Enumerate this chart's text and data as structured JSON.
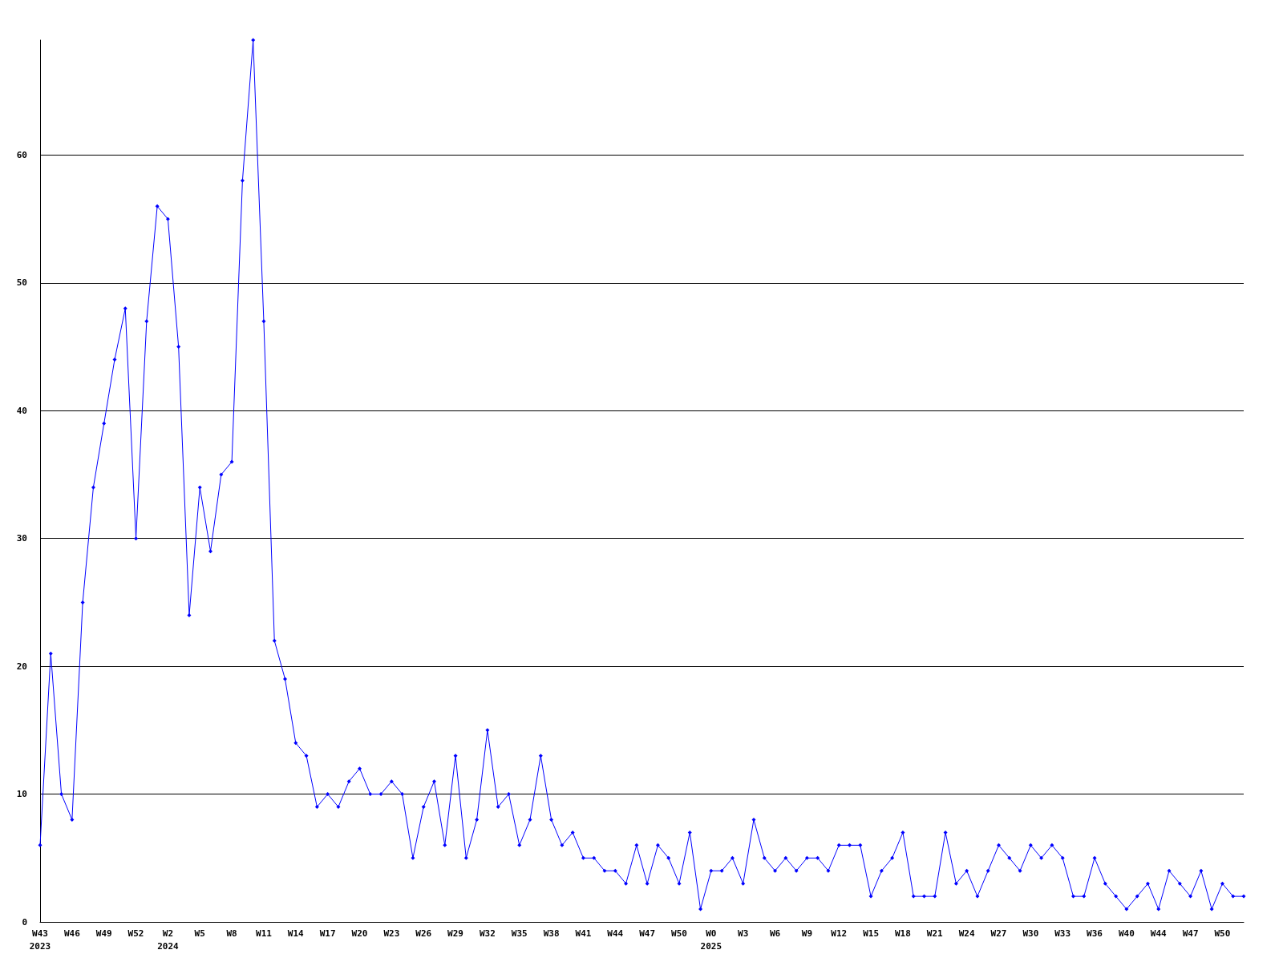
{
  "chart_data": {
    "type": "line",
    "categories": [
      "W43\n2023",
      null,
      null,
      "W46",
      null,
      null,
      "W49",
      null,
      null,
      "W52",
      null,
      null,
      "W2\n2024",
      null,
      null,
      "W5",
      null,
      null,
      "W8",
      null,
      null,
      "W11",
      null,
      null,
      "W14",
      null,
      null,
      "W17",
      null,
      null,
      "W20",
      null,
      null,
      "W23",
      null,
      null,
      "W26",
      null,
      null,
      "W29",
      null,
      null,
      "W32",
      null,
      null,
      "W35",
      null,
      null,
      "W38",
      null,
      null,
      "W41",
      null,
      null,
      "W44",
      null,
      null,
      "W47",
      null,
      null,
      "W50",
      null,
      null,
      "W0\n2025",
      null,
      null,
      "W3",
      null,
      null,
      "W6",
      null,
      null,
      "W9",
      null,
      null,
      "W12",
      null,
      null,
      "W15",
      null,
      null,
      "W18",
      null,
      null,
      "W21",
      null,
      null,
      "W24",
      null,
      null,
      "W27",
      null,
      null,
      "W30",
      null,
      null,
      "W33",
      null,
      null,
      "W36",
      null,
      null,
      "W40",
      null,
      null,
      "W44",
      null,
      null,
      "W47",
      null,
      null,
      "W50",
      null,
      null
    ],
    "series": [
      {
        "color": "#0000ff",
        "values": [
          6,
          21,
          10,
          8,
          25,
          34,
          39,
          44,
          48,
          30,
          47,
          56,
          55,
          45,
          24,
          34,
          29,
          35,
          36,
          58,
          69,
          47,
          22,
          19,
          14,
          13,
          9,
          10,
          9,
          11,
          12,
          10,
          10,
          11,
          10,
          5,
          9,
          11,
          6,
          13,
          5,
          8,
          15,
          9,
          10,
          6,
          8,
          13,
          8,
          6,
          7,
          5,
          5,
          4,
          4,
          3,
          6,
          3,
          6,
          5,
          3,
          7,
          1,
          4,
          4,
          5,
          3,
          8,
          5,
          4,
          5,
          4,
          5,
          5,
          4,
          6,
          6,
          6,
          2,
          4,
          5,
          7,
          2,
          2,
          2,
          7,
          3,
          4,
          2,
          4,
          6,
          5,
          4,
          6,
          5,
          6,
          5,
          2,
          2,
          5,
          3,
          2,
          1,
          2,
          3,
          1,
          4,
          3,
          2,
          4,
          1,
          3,
          2,
          2
        ]
      }
    ],
    "ylim": [
      0,
      69
    ],
    "yticks": [
      0,
      10,
      20,
      30,
      40,
      50,
      60
    ],
    "grid": "y",
    "marker": "diamond",
    "line_style": "solid"
  }
}
